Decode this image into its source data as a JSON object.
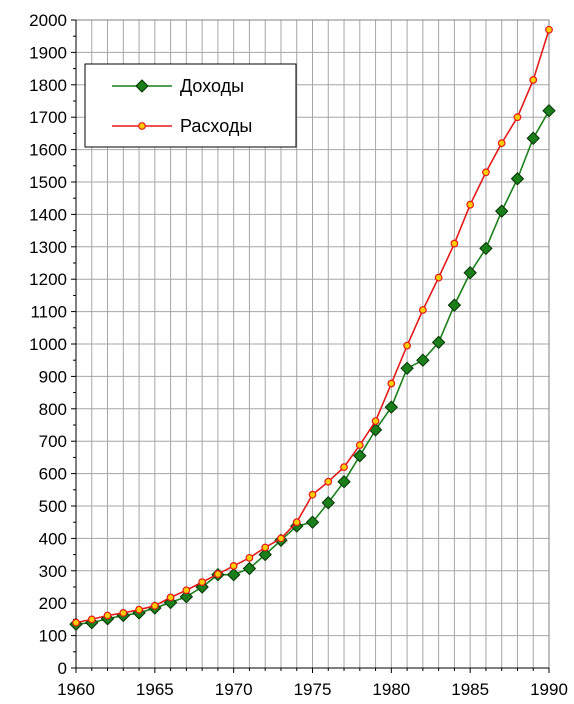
{
  "chart_data": {
    "type": "line",
    "title": "",
    "xlabel": "",
    "ylabel": "",
    "xlim": [
      1960,
      1990
    ],
    "ylim": [
      0,
      2000
    ],
    "x_ticks": [
      1960,
      1965,
      1970,
      1975,
      1980,
      1985,
      1990
    ],
    "y_ticks": [
      0,
      100,
      200,
      300,
      400,
      500,
      600,
      700,
      800,
      900,
      1000,
      1100,
      1200,
      1300,
      1400,
      1500,
      1600,
      1700,
      1800,
      1900,
      2000
    ],
    "grid": true,
    "legend_position": "top-left",
    "x": [
      1960,
      1961,
      1962,
      1963,
      1964,
      1965,
      1966,
      1967,
      1968,
      1969,
      1970,
      1971,
      1972,
      1973,
      1974,
      1975,
      1976,
      1977,
      1978,
      1979,
      1980,
      1981,
      1982,
      1983,
      1984,
      1985,
      1986,
      1987,
      1988,
      1989,
      1990
    ],
    "series": [
      {
        "name": "Доходы",
        "color": "#1a7f1a",
        "marker": "diamond",
        "values": [
          135,
          140,
          152,
          162,
          170,
          185,
          202,
          220,
          250,
          288,
          288,
          307,
          350,
          394,
          438,
          450,
          510,
          575,
          655,
          735,
          805,
          925,
          950,
          1005,
          1120,
          1220,
          1295,
          1410,
          1510,
          1635,
          1720
        ]
      },
      {
        "name": "Расходы",
        "color": "#e31a1a",
        "marker": "circle",
        "values": [
          140,
          150,
          162,
          170,
          180,
          192,
          218,
          240,
          265,
          290,
          315,
          340,
          372,
          400,
          450,
          535,
          575,
          620,
          688,
          762,
          878,
          995,
          1105,
          1205,
          1310,
          1430,
          1530,
          1620,
          1700,
          1815,
          1970
        ]
      }
    ]
  }
}
